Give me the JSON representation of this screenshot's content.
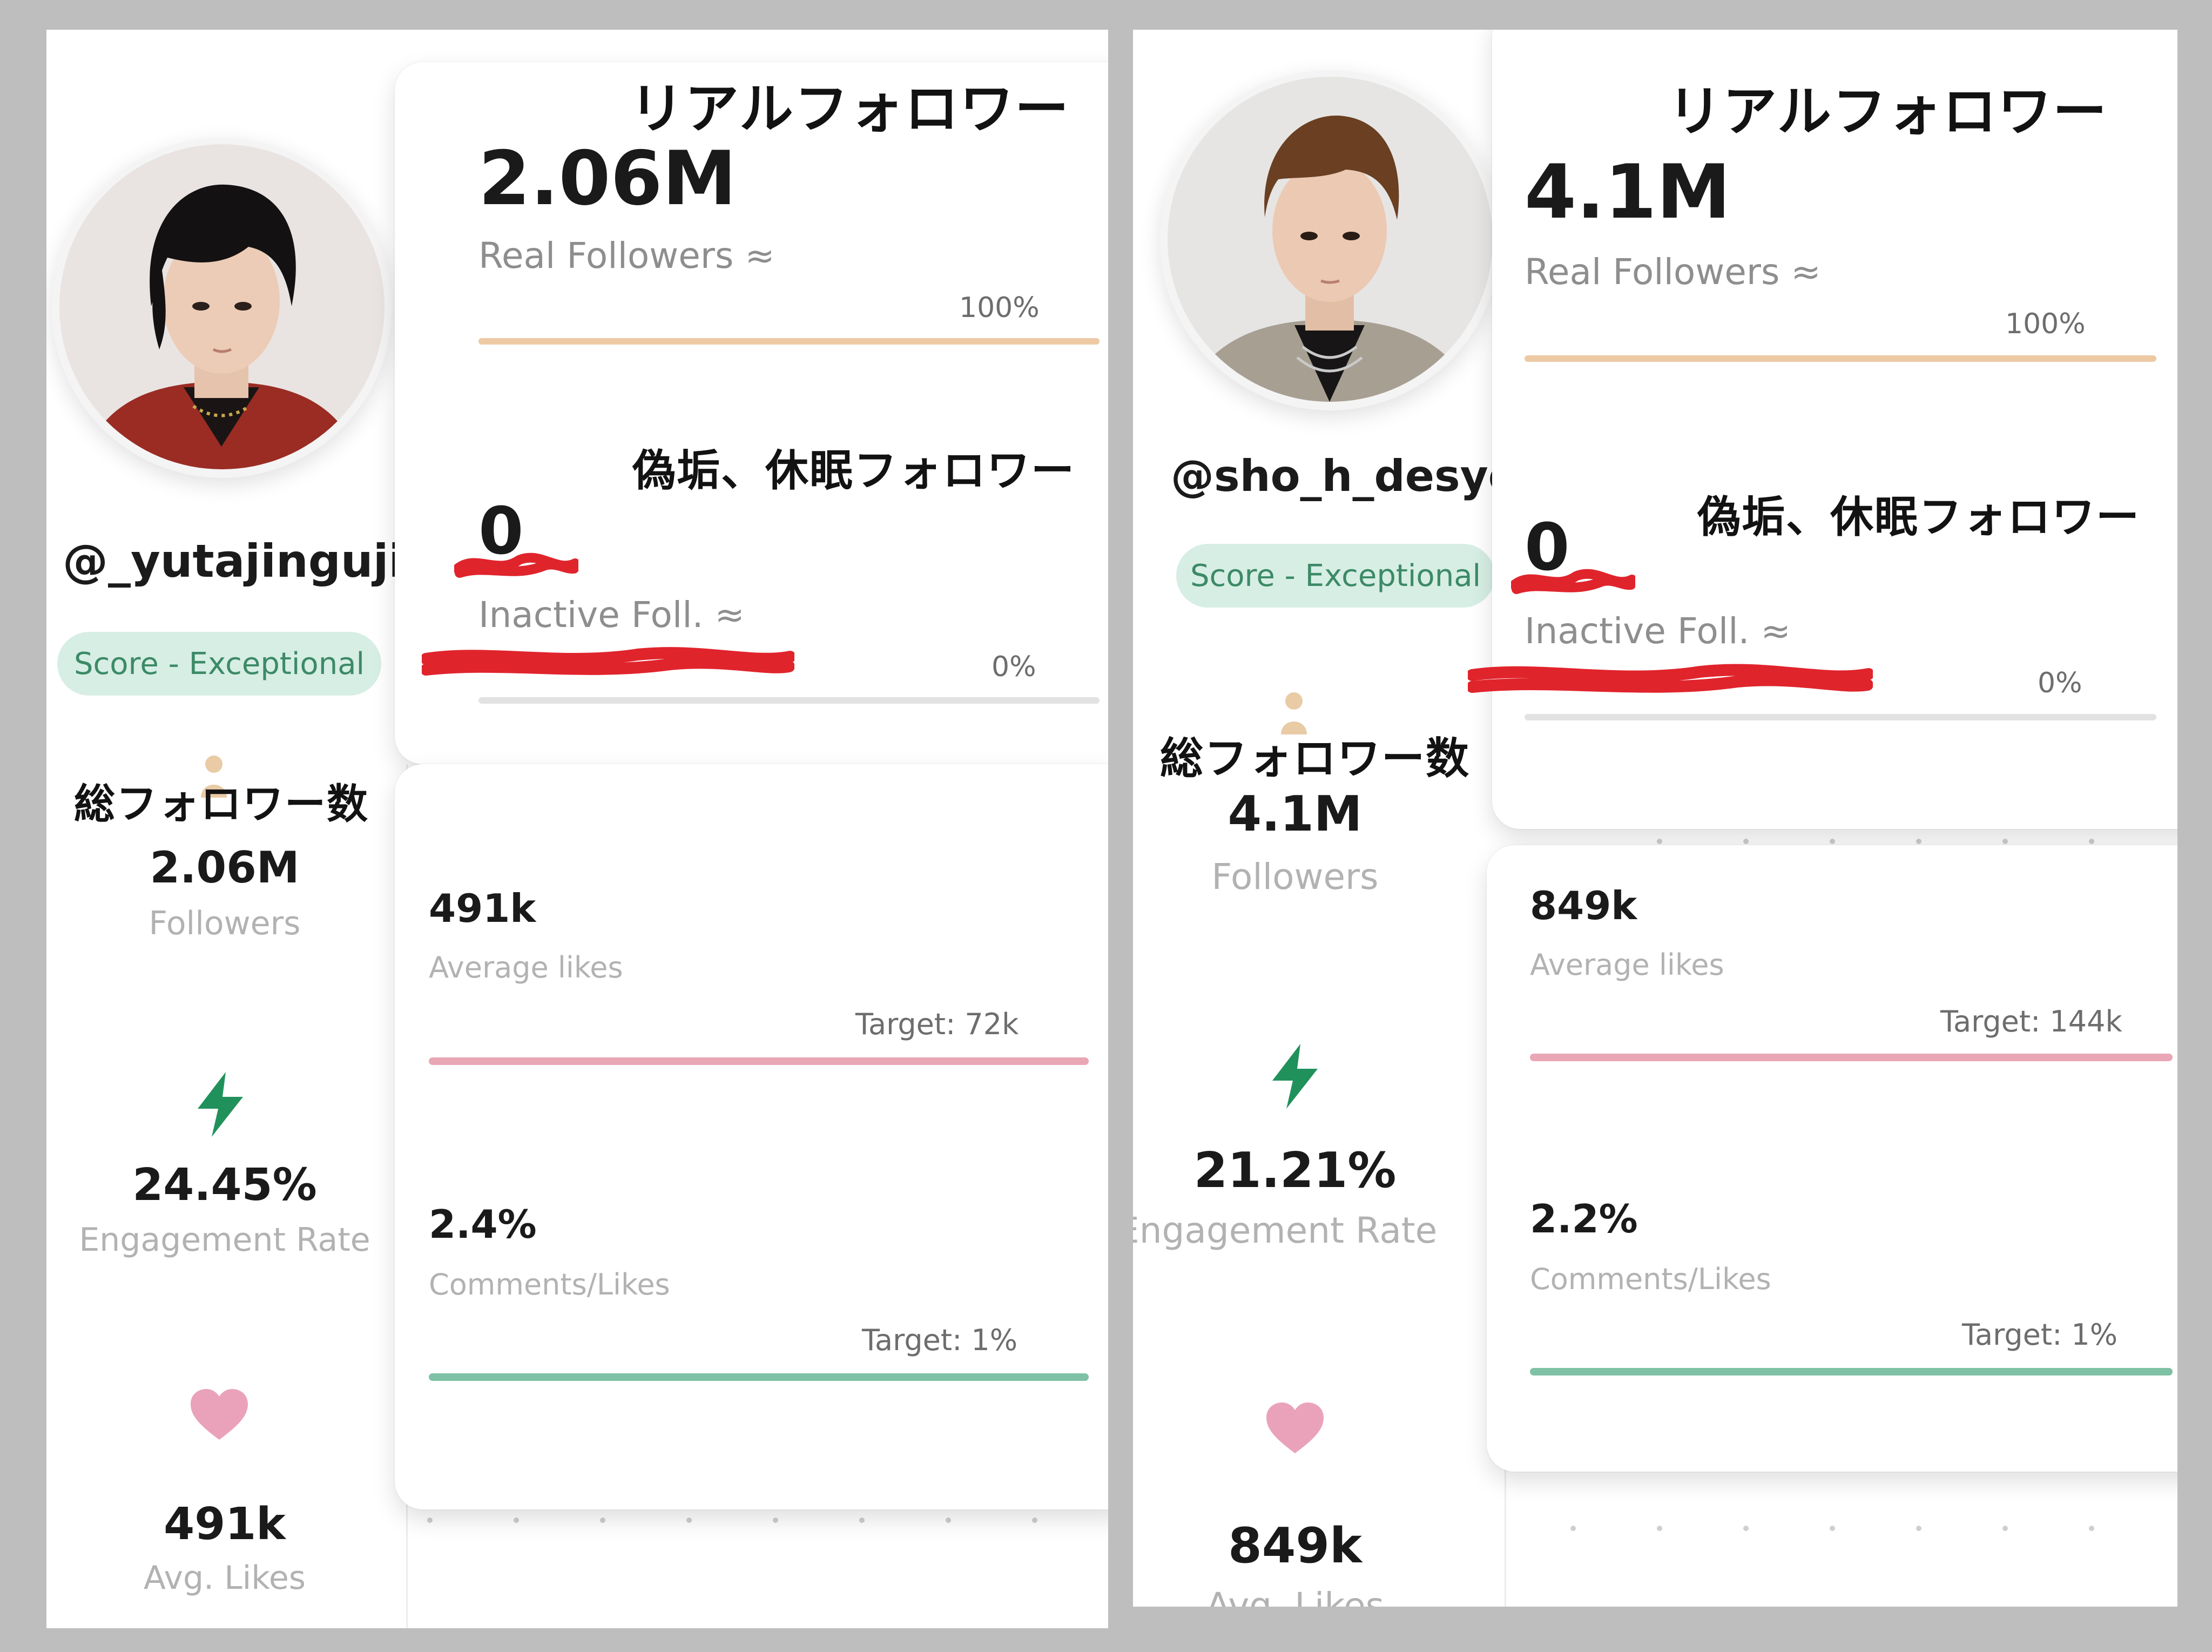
{
  "colors": {
    "real_bar": "#edc9a4",
    "inactive_bar": "#e2e2e2",
    "likes_bar": "#e9a7b6",
    "comments_bar": "#7fc1a4",
    "score_pill_bg": "#d7eee4",
    "score_pill_text": "#3c8a67",
    "bolt": "#21915c",
    "heart": "#eaa2bb",
    "scribble": "#e0242c"
  },
  "profiles": [
    {
      "handle": "@_yutajinguji",
      "score_label": "Score - Exceptional",
      "jp_real_followers": "リアルフォロワー",
      "real_followers_value": "2.06M",
      "real_followers_label": "Real Followers ≈",
      "real_followers_pct": "100%",
      "real_followers_fill": 1.0,
      "jp_inactive": "偽垢、休眠フォロワー",
      "inactive_value": "0",
      "inactive_label": "Inactive Foll. ≈",
      "inactive_pct": "0%",
      "inactive_fill": 0.0,
      "jp_total_followers": "総フォロワー数",
      "followers_value": "2.06M",
      "followers_label": "Followers",
      "engagement_value": "24.45%",
      "engagement_label": "Engagement Rate",
      "avg_likes_value": "491k",
      "avg_likes_label": "Avg. Likes",
      "likes_card_value": "491k",
      "likes_card_label": "Average likes",
      "likes_target": "Target: 72k",
      "likes_fill": 1.0,
      "comments_value": "2.4%",
      "comments_label": "Comments/Likes",
      "comments_target": "Target: 1%",
      "comments_fill": 1.0,
      "icons": [
        "person-icon",
        "bolt-icon",
        "heart-icon"
      ]
    },
    {
      "handle": "@sho_h_desyo",
      "score_label": "Score - Exceptional",
      "jp_real_followers": "リアルフォロワー",
      "real_followers_value": "4.1M",
      "real_followers_label": "Real Followers ≈",
      "real_followers_pct": "100%",
      "real_followers_fill": 1.0,
      "jp_inactive": "偽垢、休眠フォロワー",
      "inactive_value": "0",
      "inactive_label": "Inactive Foll. ≈",
      "inactive_pct": "0%",
      "inactive_fill": 0.0,
      "jp_total_followers": "総フォロワー数",
      "followers_value": "4.1M",
      "followers_label": "Followers",
      "engagement_value": "21.21%",
      "engagement_label": "Engagement Rate",
      "avg_likes_value": "849k",
      "avg_likes_label": "Avg. Likes",
      "likes_card_value": "849k",
      "likes_card_label": "Average likes",
      "likes_target": "Target: 144k",
      "likes_fill": 1.0,
      "comments_value": "2.2%",
      "comments_label": "Comments/Likes",
      "comments_target": "Target: 1%",
      "comments_fill": 1.0,
      "icons": [
        "person-icon",
        "bolt-icon",
        "heart-icon"
      ]
    }
  ]
}
